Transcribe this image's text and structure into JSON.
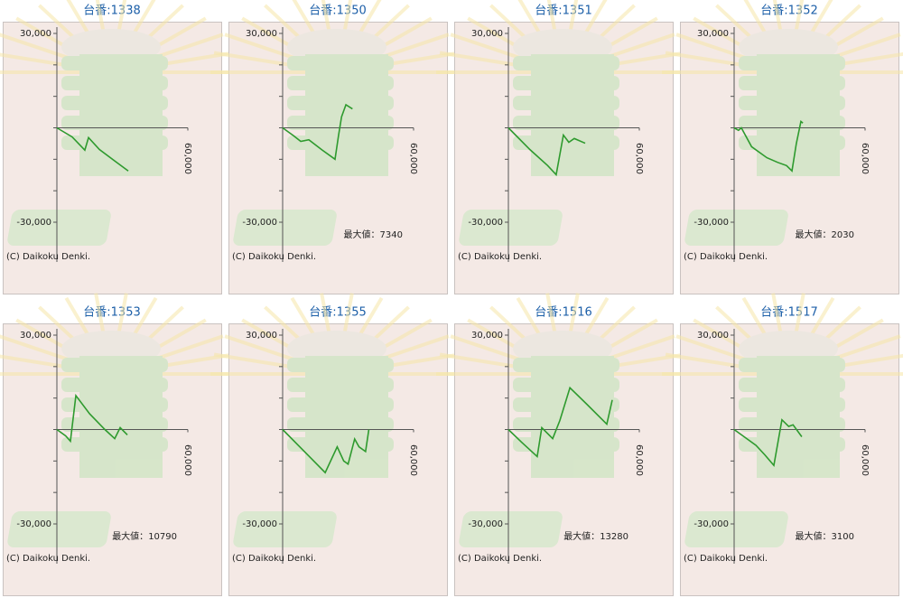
{
  "chart_data": [
    {
      "type": "line",
      "title": "台番:1338",
      "color": "#2e9a2e",
      "xlim": [
        0,
        60000
      ],
      "ylim": [
        -30000,
        30000
      ],
      "xticks": [
        {
          "value": 60000,
          "label": "60,000"
        }
      ],
      "yticks": [
        {
          "value": -30000,
          "label": "-30,000"
        },
        {
          "value": 30000,
          "label": "30,000"
        }
      ],
      "yminor": [
        -20000,
        -10000,
        0,
        10000,
        20000
      ],
      "x": [
        0,
        7000,
        12800,
        14500,
        19500,
        27800,
        32700
      ],
      "values": [
        0,
        -2900,
        -7100,
        -3100,
        -6900,
        -11200,
        -13700
      ],
      "credit": "(C) Daikoku Denki."
    },
    {
      "type": "line",
      "title": "台番:1350",
      "color": "#2e9a2e",
      "xlim": [
        0,
        60000
      ],
      "ylim": [
        -30000,
        30000
      ],
      "xticks": [
        {
          "value": 60000,
          "label": "60,000"
        }
      ],
      "yticks": [
        {
          "value": -30000,
          "label": "-30,000"
        },
        {
          "value": 30000,
          "label": "30,000"
        }
      ],
      "yminor": [
        -20000,
        -10000,
        0,
        10000,
        20000
      ],
      "x": [
        0,
        5000,
        8300,
        12000,
        18000,
        24000,
        25600,
        27000,
        29000,
        32000
      ],
      "values": [
        0,
        -2500,
        -4300,
        -3800,
        -7000,
        -10000,
        -2500,
        3500,
        7340,
        6000
      ],
      "max_caption": "最大値：",
      "max_value": 7340,
      "credit": "(C) Daikoku Denki."
    },
    {
      "type": "line",
      "title": "台番:1351",
      "color": "#2e9a2e",
      "xlim": [
        0,
        60000
      ],
      "ylim": [
        -30000,
        30000
      ],
      "xticks": [
        {
          "value": 60000,
          "label": "60,000"
        }
      ],
      "yticks": [
        {
          "value": -30000,
          "label": "-30,000"
        },
        {
          "value": 30000,
          "label": "30,000"
        }
      ],
      "yminor": [
        -20000,
        -10000,
        0,
        10000,
        20000
      ],
      "x": [
        0,
        10000,
        18000,
        21900,
        25200,
        27700,
        30200,
        35200
      ],
      "values": [
        0,
        -7000,
        -12000,
        -14900,
        -2300,
        -4600,
        -3400,
        -4900
      ],
      "credit": "(C) Daikoku Denki."
    },
    {
      "type": "line",
      "title": "台番:1352",
      "color": "#2e9a2e",
      "xlim": [
        0,
        60000
      ],
      "ylim": [
        -30000,
        30000
      ],
      "xticks": [
        {
          "value": 60000,
          "label": "60,000"
        }
      ],
      "yticks": [
        {
          "value": -30000,
          "label": "-30,000"
        },
        {
          "value": 30000,
          "label": "30,000"
        }
      ],
      "yminor": [
        -20000,
        -10000,
        0,
        10000,
        20000
      ],
      "x": [
        0,
        2000,
        3300,
        8000,
        15000,
        20000,
        24000,
        26500,
        28500,
        30600,
        31500
      ],
      "values": [
        0,
        -800,
        0,
        -6000,
        -9500,
        -11000,
        -12000,
        -13700,
        -5000,
        2030,
        1500
      ],
      "max_caption": "最大値：",
      "max_value": 2030,
      "credit": "(C) Daikoku Denki."
    },
    {
      "type": "line",
      "title": "台番:1353",
      "color": "#2e9a2e",
      "xlim": [
        0,
        60000
      ],
      "ylim": [
        -30000,
        30000
      ],
      "xticks": [
        {
          "value": 60000,
          "label": "60,000"
        }
      ],
      "yticks": [
        {
          "value": -30000,
          "label": "-30,000"
        },
        {
          "value": 30000,
          "label": "30,000"
        }
      ],
      "yminor": [
        -20000,
        -10000,
        0,
        10000,
        20000
      ],
      "x": [
        0,
        4000,
        6200,
        8700,
        15000,
        22000,
        26500,
        29000,
        32300
      ],
      "values": [
        0,
        -2000,
        -3700,
        10790,
        5000,
        0,
        -2900,
        600,
        -1700
      ],
      "max_caption": "最大値：",
      "max_value": 10790,
      "credit": "(C) Daikoku Denki."
    },
    {
      "type": "line",
      "title": "台番:1355",
      "color": "#2e9a2e",
      "xlim": [
        0,
        60000
      ],
      "ylim": [
        -30000,
        30000
      ],
      "xticks": [
        {
          "value": 60000,
          "label": "60,000"
        }
      ],
      "yticks": [
        {
          "value": -30000,
          "label": "-30,000"
        },
        {
          "value": 30000,
          "label": "30,000"
        }
      ],
      "yminor": [
        -20000,
        -10000,
        0,
        10000,
        20000
      ],
      "x": [
        0,
        10000,
        19500,
        25000,
        28000,
        30000,
        33000,
        35000,
        38000,
        39500
      ],
      "values": [
        0,
        -7000,
        -13700,
        -5500,
        -10000,
        -11000,
        -3000,
        -5500,
        -7000,
        0
      ],
      "credit": "(C) Daikoku Denki."
    },
    {
      "type": "line",
      "title": "台番:1516",
      "color": "#2e9a2e",
      "xlim": [
        0,
        60000
      ],
      "ylim": [
        -30000,
        30000
      ],
      "xticks": [
        {
          "value": 60000,
          "label": "60,000"
        }
      ],
      "yticks": [
        {
          "value": -30000,
          "label": "-30,000"
        },
        {
          "value": 30000,
          "label": "30,000"
        }
      ],
      "yminor": [
        -20000,
        -10000,
        0,
        10000,
        20000
      ],
      "x": [
        0,
        6000,
        13200,
        15300,
        20300,
        23600,
        28200,
        36000,
        45100,
        47600
      ],
      "values": [
        0,
        -4000,
        -8600,
        600,
        -2900,
        2900,
        13280,
        8000,
        1700,
        9400
      ],
      "max_caption": "最大値：",
      "max_value": 13280,
      "credit": "(C) Daikoku Denki."
    },
    {
      "type": "line",
      "title": "台番:1517",
      "color": "#2e9a2e",
      "xlim": [
        0,
        60000
      ],
      "ylim": [
        -30000,
        30000
      ],
      "xticks": [
        {
          "value": 60000,
          "label": "60,000"
        }
      ],
      "yticks": [
        {
          "value": -30000,
          "label": "-30,000"
        },
        {
          "value": 30000,
          "label": "30,000"
        }
      ],
      "yminor": [
        -20000,
        -10000,
        0,
        10000,
        20000
      ],
      "x": [
        0,
        4000,
        10000,
        14000,
        18200,
        21900,
        25000,
        27000,
        31000
      ],
      "values": [
        0,
        -2000,
        -5000,
        -8000,
        -11400,
        3100,
        1000,
        1500,
        -2300
      ],
      "max_caption": "最大値：",
      "max_value": 3100,
      "credit": "(C) Daikoku Denki."
    }
  ]
}
